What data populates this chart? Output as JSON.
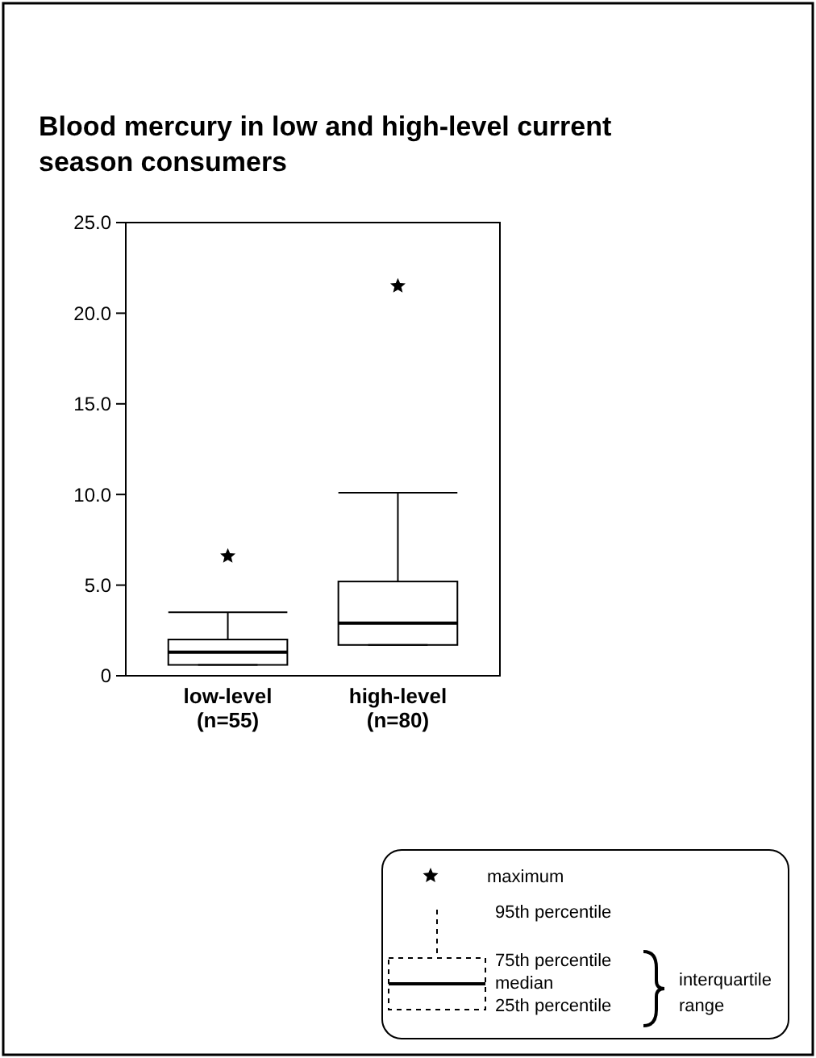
{
  "chart_data": {
    "type": "box",
    "title": "Blood mercury in low and high-level current season consumers",
    "categories": [
      "low-level\n(n=55)",
      "high-level\n(n=80)"
    ],
    "boxes": [
      {
        "low": 0.6,
        "q1": 0.6,
        "median": 1.3,
        "q3": 2.0,
        "high": 3.5,
        "outliers": [
          6.6
        ]
      },
      {
        "low": 1.7,
        "q1": 1.7,
        "median": 2.9,
        "q3": 5.2,
        "high": 10.1,
        "outliers": [
          21.5
        ]
      }
    ],
    "color": "#000000",
    "marker": "star",
    "ylim": [
      0,
      25
    ],
    "yticks": [
      {
        "value": 0,
        "label": "0"
      },
      {
        "value": 5,
        "label": "5.0"
      },
      {
        "value": 10,
        "label": "10.0"
      },
      {
        "value": 15,
        "label": "15.0"
      },
      {
        "value": 20,
        "label": "20.0"
      },
      {
        "value": 25,
        "label": "25.0"
      }
    ],
    "annotations": [
      "maximum",
      "95th percentile",
      "75th percentile",
      "median",
      "25th percentile",
      "interquartile range"
    ]
  }
}
